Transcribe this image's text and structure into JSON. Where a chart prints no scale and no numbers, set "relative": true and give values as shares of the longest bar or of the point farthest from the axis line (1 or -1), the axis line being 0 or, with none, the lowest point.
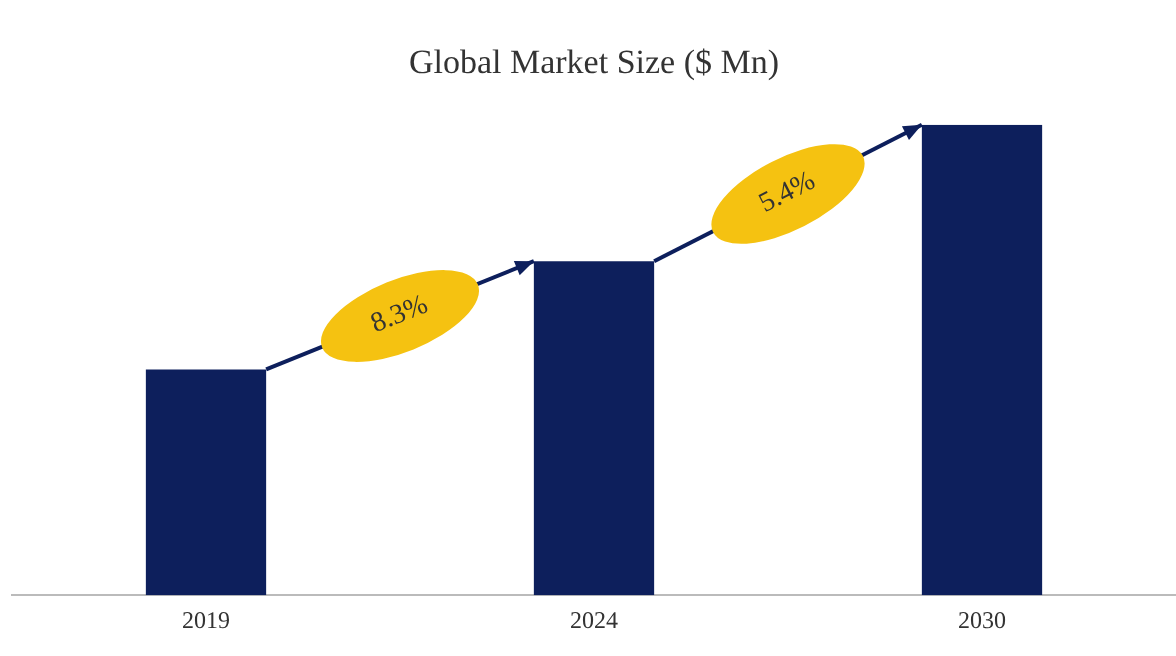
{
  "chart_data": {
    "type": "bar",
    "title": "Global Market Size ($ Mn)",
    "categories": [
      "2019",
      "2024",
      "2030"
    ],
    "values": [
      0.48,
      0.71,
      1
    ],
    "color": "#0d1f5c",
    "relative": true,
    "annotations": [
      "8.3%",
      "5.4%"
    ],
    "grid": false,
    "legend": false
  }
}
